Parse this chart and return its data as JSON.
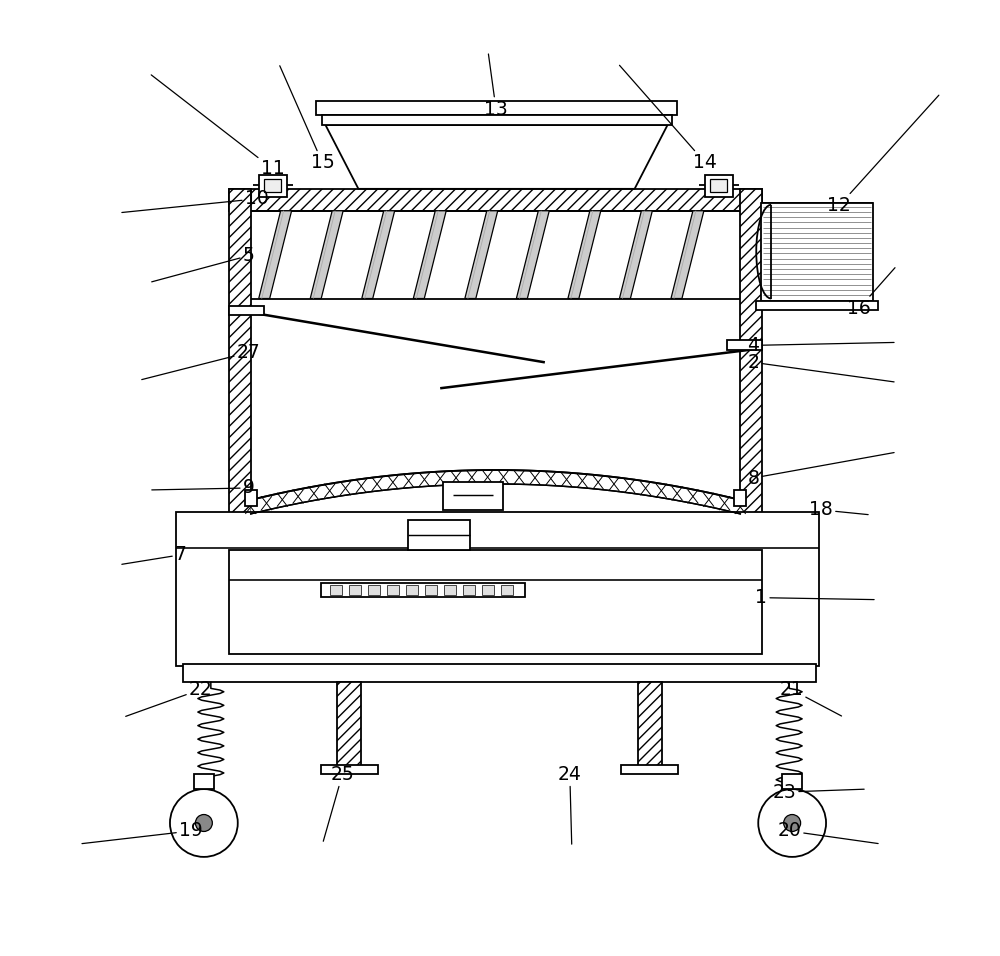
{
  "bg_color": "#ffffff",
  "fig_width": 10.0,
  "fig_height": 9.56,
  "annotations": [
    [
      "1",
      878,
      600,
      762,
      598
    ],
    [
      "2",
      898,
      382,
      754,
      362
    ],
    [
      "4",
      898,
      342,
      754,
      345
    ],
    [
      "5",
      148,
      282,
      248,
      255
    ],
    [
      "7",
      118,
      565,
      180,
      555
    ],
    [
      "8",
      898,
      452,
      754,
      478
    ],
    [
      "9",
      148,
      490,
      248,
      488
    ],
    [
      "10",
      118,
      212,
      256,
      198
    ],
    [
      "11",
      148,
      72,
      272,
      168
    ],
    [
      "12",
      942,
      92,
      840,
      205
    ],
    [
      "13",
      488,
      50,
      496,
      108
    ],
    [
      "14",
      618,
      62,
      706,
      162
    ],
    [
      "15",
      278,
      62,
      322,
      162
    ],
    [
      "16",
      898,
      265,
      860,
      308
    ],
    [
      "18",
      872,
      515,
      822,
      510
    ],
    [
      "19",
      78,
      845,
      190,
      832
    ],
    [
      "20",
      882,
      845,
      790,
      832
    ],
    [
      "21",
      845,
      718,
      792,
      690
    ],
    [
      "22",
      122,
      718,
      200,
      690
    ],
    [
      "23",
      868,
      790,
      785,
      793
    ],
    [
      "24",
      572,
      848,
      570,
      775
    ],
    [
      "25",
      322,
      845,
      342,
      775
    ],
    [
      "27",
      138,
      380,
      248,
      352
    ]
  ]
}
